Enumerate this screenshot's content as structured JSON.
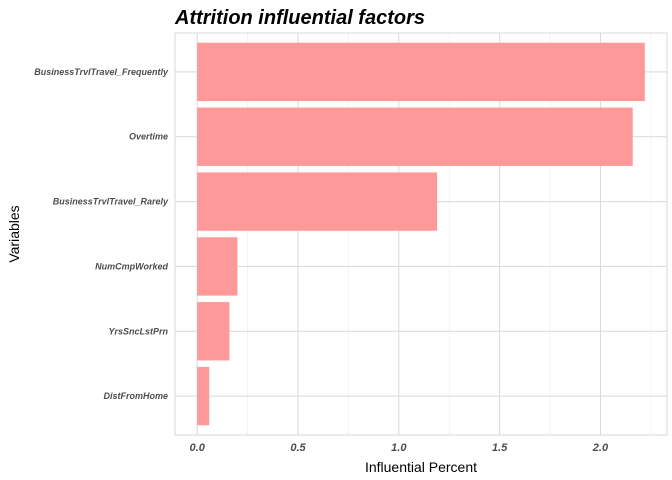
{
  "chart_data": {
    "type": "bar",
    "orientation": "horizontal",
    "title": "Attrition influential factors",
    "xlabel": "Influential Percent",
    "ylabel": "Variables",
    "categories": [
      "BusinessTrvlTravel_Frequently",
      "Overtime",
      "BusinessTrvlTravel_Rarely",
      "NumCmpWorked",
      "YrsSncLstPrn",
      "DistFromHome"
    ],
    "values": [
      2.22,
      2.16,
      1.19,
      0.2,
      0.16,
      0.06
    ],
    "xlim": [
      -0.11,
      2.33
    ],
    "xticks": [
      "0.0",
      "0.5",
      "1.0",
      "1.5",
      "2.0"
    ],
    "xtick_values": [
      0,
      0.5,
      1,
      1.5,
      2
    ],
    "bar_color": "#ff9999",
    "grid": true
  }
}
